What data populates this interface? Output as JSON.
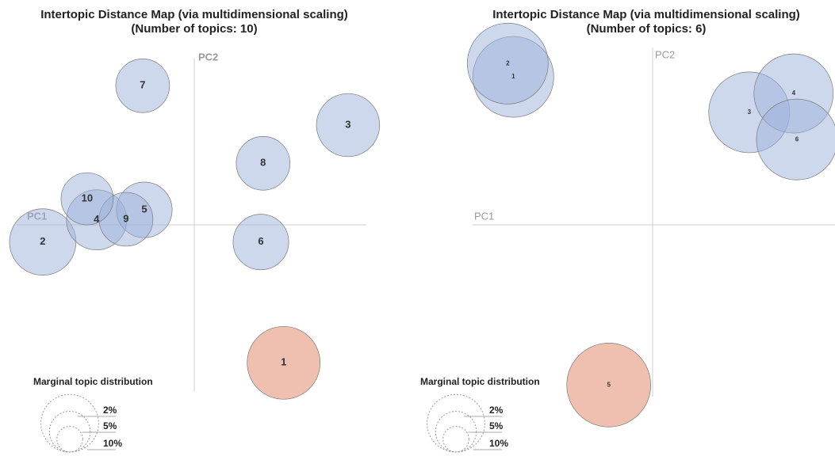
{
  "chart_data": [
    {
      "type": "bubble",
      "title": "Intertopic Distance Map (via multidimensional scaling)",
      "subtitle": "(Number of topics: 10)",
      "x_label": "PC1",
      "y_label": "PC2",
      "xlim": [
        -0.32,
        0.31
      ],
      "ylim": [
        -0.3,
        0.3
      ],
      "labels": [
        "1",
        "2",
        "3",
        "4",
        "5",
        "6",
        "7",
        "8",
        "9",
        "10"
      ],
      "x": [
        0.161,
        -0.273,
        0.277,
        -0.176,
        -0.09,
        0.12,
        -0.093,
        0.124,
        -0.123,
        -0.193
      ],
      "y": [
        -0.249,
        -0.031,
        0.18,
        0.009,
        0.027,
        -0.031,
        0.251,
        0.111,
        0.01,
        0.047
      ],
      "sizes": [
        16,
        13.3,
        12,
        10.9,
        9.3,
        9.3,
        8.7,
        8.7,
        8.7,
        8.2
      ],
      "colors": [
        "#e07f62",
        "#9db2db",
        "#9db2db",
        "#9db2db",
        "#9db2db",
        "#9db2db",
        "#9db2db",
        "#9db2db",
        "#9db2db",
        "#9db2db"
      ],
      "legend": {
        "title": "Marginal topic distribution",
        "sizes": [
          {
            "value": 2,
            "label": "2%"
          },
          {
            "value": 5,
            "label": "5%"
          },
          {
            "value": 10,
            "label": "10%"
          }
        ]
      }
    },
    {
      "type": "bubble",
      "title": "Intertopic Distance Map (via multidimensional scaling)",
      "subtitle": "(Number of topics: 6)",
      "x_label": "PC1",
      "y_label": "PC2",
      "xlim": [
        -0.325,
        0.33
      ],
      "ylim": [
        -0.31,
        0.32
      ],
      "labels": [
        "1",
        "2",
        "3",
        "4",
        "5",
        "6"
      ],
      "x": [
        -0.251,
        -0.261,
        0.174,
        0.254,
        -0.079,
        0.26
      ],
      "y": [
        0.267,
        0.291,
        0.203,
        0.237,
        -0.289,
        0.154
      ],
      "sizes": [
        19.7,
        19.7,
        19.7,
        18.9,
        21.2,
        19.7
      ],
      "colors": [
        "#9db2db",
        "#9db2db",
        "#9db2db",
        "#9db2db",
        "#e07f62",
        "#9db2db"
      ],
      "legend": {
        "title": "Marginal topic distribution",
        "sizes": [
          {
            "value": 2,
            "label": "2%"
          },
          {
            "value": 5,
            "label": "5%"
          },
          {
            "value": 10,
            "label": "10%"
          }
        ]
      }
    }
  ]
}
